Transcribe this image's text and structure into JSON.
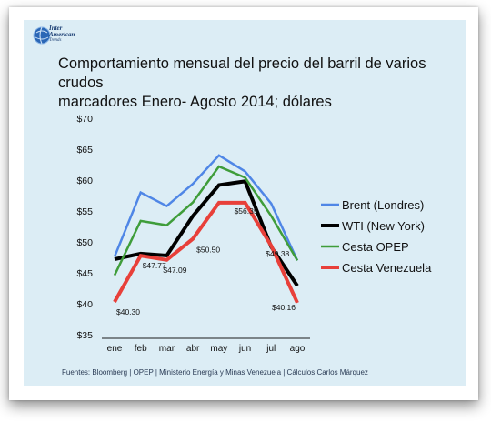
{
  "header": {
    "logo_line1": "Inter",
    "logo_line2": "American",
    "logo_line3": "Trends",
    "title_line1": "Comportamiento mensual del precio del barril de varios crudos",
    "title_line2": "marcadores  Enero- Agosto 2014; dólares"
  },
  "footer": {
    "source": "Fuentes: Bloomberg | OPEP | Ministerio Energía y Minas Venezuela | Cálculos Carlos Márquez"
  },
  "chart_data": {
    "type": "line",
    "title": "Comportamiento mensual del precio del barril de varios crudos marcadores  Enero- Agosto 2014; dólares",
    "xlabel": "",
    "ylabel": "",
    "categories": [
      "ene",
      "feb",
      "mar",
      "abr",
      "may",
      "jun",
      "jul",
      "ago"
    ],
    "ylim": [
      35,
      70
    ],
    "yticks": [
      "$35",
      "$40",
      "$45",
      "$50",
      "$55",
      "$60",
      "$65",
      "$70"
    ],
    "grid": false,
    "legend_position": "right",
    "series": [
      {
        "name": "Brent (Londres)",
        "color": "#4f86e6",
        "values": [
          47.6,
          58.0,
          55.8,
          59.4,
          64.0,
          61.4,
          56.2,
          47.0
        ]
      },
      {
        "name": "WTI (New York)",
        "color": "#000000",
        "values": [
          47.2,
          48.1,
          47.8,
          54.2,
          59.2,
          59.8,
          49.2,
          42.9
        ]
      },
      {
        "name": "Cesta OPEP",
        "color": "#3f9d3a",
        "values": [
          44.6,
          53.4,
          52.7,
          56.4,
          62.2,
          60.4,
          54.2,
          47.0
        ]
      },
      {
        "name": "Cesta Venezuela",
        "color": "#e8403a",
        "values": [
          40.3,
          47.77,
          47.09,
          50.5,
          56.35,
          56.35,
          49.38,
          40.16
        ]
      }
    ],
    "data_labels": [
      {
        "text": "$40.30",
        "index": 0,
        "value": 40.3
      },
      {
        "text": "$47.77",
        "index": 1,
        "value": 47.77
      },
      {
        "text": "$47.09",
        "index": 2,
        "value": 47.09
      },
      {
        "text": "$50.50",
        "index": 3,
        "value": 50.5
      },
      {
        "text": "$56.35",
        "index": 5,
        "value": 56.35
      },
      {
        "text": "$49.38",
        "index": 6,
        "value": 49.38
      },
      {
        "text": "$40.16",
        "index": 7,
        "value": 40.16
      }
    ]
  }
}
